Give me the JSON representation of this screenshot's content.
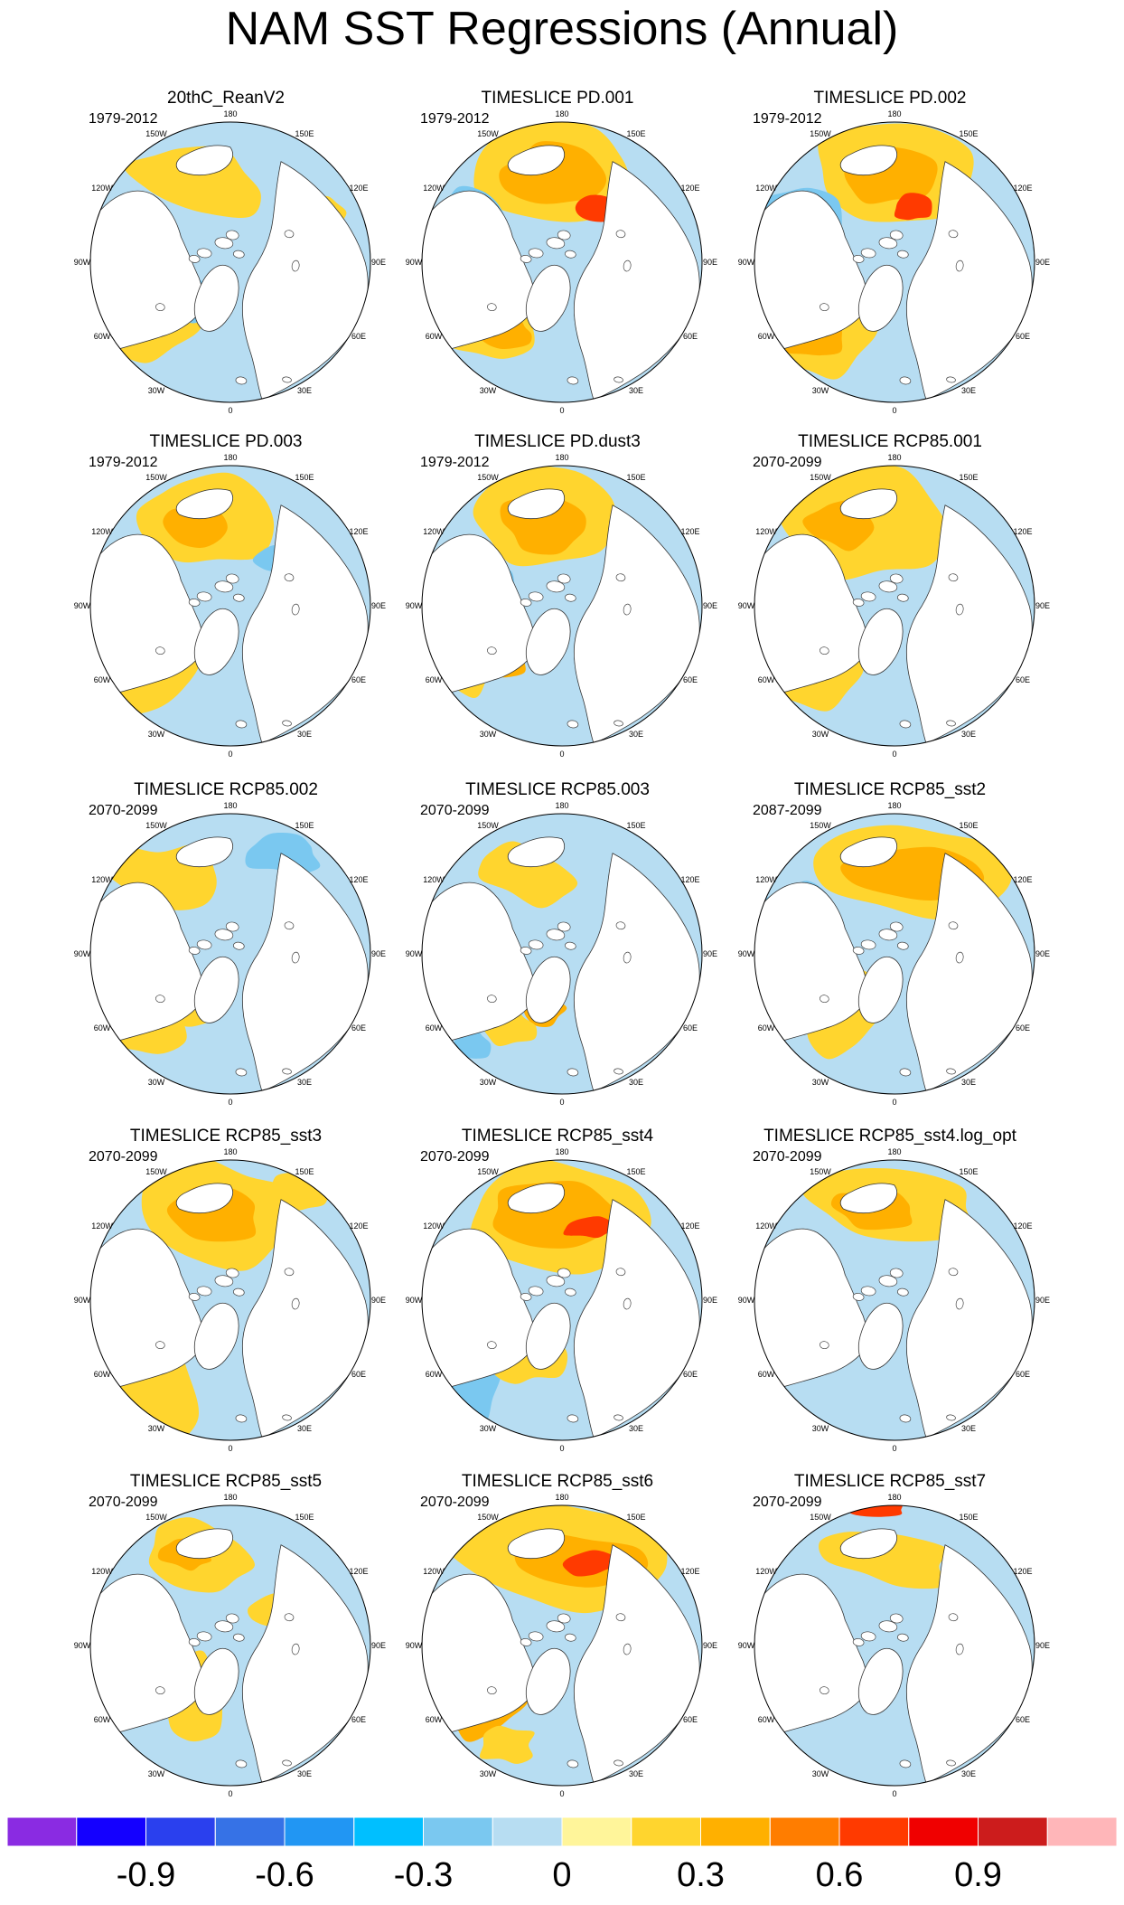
{
  "title": "NAM SST Regressions (Annual)",
  "lon_labels": [
    "180",
    "150E",
    "120E",
    "90E",
    "60E",
    "30E",
    "0",
    "30W",
    "60W",
    "90W",
    "120W",
    "150W"
  ],
  "panels": [
    {
      "title": "20thC_ReanV2",
      "period": "1979-2012"
    },
    {
      "title": "TIMESLICE PD.001",
      "period": "1979-2012"
    },
    {
      "title": "TIMESLICE PD.002",
      "period": "1979-2012"
    },
    {
      "title": "TIMESLICE PD.003",
      "period": "1979-2012"
    },
    {
      "title": "TIMESLICE PD.dust3",
      "period": "1979-2012"
    },
    {
      "title": "TIMESLICE RCP85.001",
      "period": "2070-2099"
    },
    {
      "title": "TIMESLICE RCP85.002",
      "period": "2070-2099"
    },
    {
      "title": "TIMESLICE RCP85.003",
      "period": "2070-2099"
    },
    {
      "title": "TIMESLICE RCP85_sst2",
      "period": "2087-2099"
    },
    {
      "title": "TIMESLICE RCP85_sst3",
      "period": "2070-2099"
    },
    {
      "title": "TIMESLICE RCP85_sst4",
      "period": "2070-2099"
    },
    {
      "title": "TIMESLICE RCP85_sst4.log_opt",
      "period": "2070-2099"
    },
    {
      "title": "TIMESLICE RCP85_sst5",
      "period": "2070-2099"
    },
    {
      "title": "TIMESLICE RCP85_sst6",
      "period": "2070-2099"
    },
    {
      "title": "TIMESLICE RCP85_sst7",
      "period": "2070-2099"
    }
  ],
  "colorbar": {
    "colors": [
      "#8a2be2",
      "#1400ff",
      "#2a40ee",
      "#3672e6",
      "#2196f3",
      "#00bfff",
      "#7ac8f0",
      "#b7ddf2",
      "#fff59a",
      "#ffd52e",
      "#ffb000",
      "#ff7d00",
      "#ff3a00",
      "#f00000",
      "#cc1c1c",
      "#ffb6b9"
    ],
    "labels": [
      "-0.9",
      "-0.6",
      "-0.3",
      "0",
      "0.3",
      "0.6",
      "0.9"
    ],
    "label_values": [
      -0.9,
      -0.6,
      -0.3,
      0,
      0.3,
      0.6,
      0.9
    ],
    "min": -1.2,
    "max": 1.2
  }
}
